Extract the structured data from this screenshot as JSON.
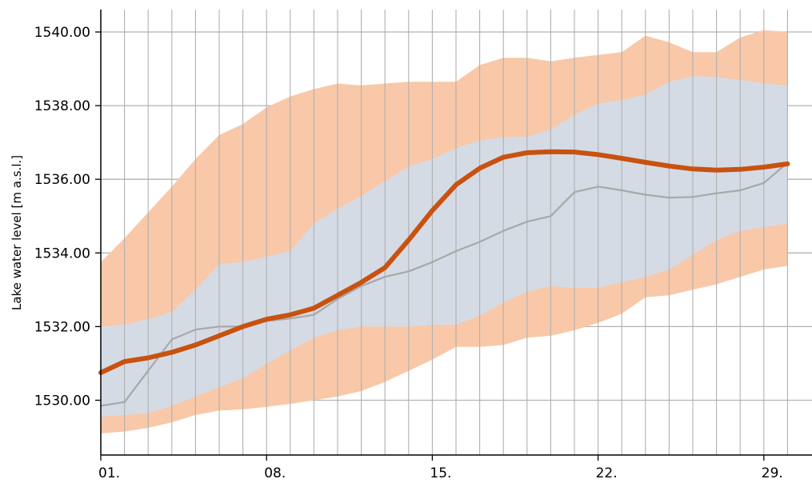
{
  "chart_data": {
    "type": "area",
    "title": "",
    "xlabel": "",
    "ylabel": "Lake water level [m a.s.l.]",
    "xlim": [
      1,
      30
    ],
    "ylim": [
      1528.9,
      1540.6
    ],
    "x_ticks": [
      {
        "value": 1,
        "label": "01."
      },
      {
        "value": 8,
        "label": "08."
      },
      {
        "value": 15,
        "label": "15."
      },
      {
        "value": 22,
        "label": "22."
      },
      {
        "value": 29,
        "label": "29."
      }
    ],
    "y_ticks": [
      {
        "value": 1530,
        "label": "1530.00"
      },
      {
        "value": 1532,
        "label": "1532.00"
      },
      {
        "value": 1534,
        "label": "1534.00"
      },
      {
        "value": 1536,
        "label": "1536.00"
      },
      {
        "value": 1538,
        "label": "1538.00"
      },
      {
        "value": 1540,
        "label": "1540.00"
      }
    ],
    "grid": "vertical lines at every day, horizontal lines at y ticks",
    "x": [
      1,
      2,
      3,
      4,
      5,
      6,
      7,
      8,
      9,
      10,
      11,
      12,
      13,
      14,
      15,
      16,
      17,
      18,
      19,
      20,
      21,
      22,
      23,
      24,
      25,
      26,
      27,
      28,
      29,
      30
    ],
    "bands": [
      {
        "color": "#f8c8a8",
        "lower": [
          1529.1,
          1529.15,
          1529.25,
          1529.4,
          1529.6,
          1529.72,
          1529.75,
          1529.82,
          1529.9,
          1530.0,
          1530.1,
          1530.25,
          1530.5,
          1530.8,
          1531.1,
          1531.45,
          1531.45,
          1531.5,
          1531.7,
          1531.75,
          1531.9,
          1532.1,
          1532.35,
          1532.8,
          1532.85,
          1533.0,
          1533.15,
          1533.35,
          1533.55,
          1533.65
        ],
        "upper": [
          1533.75,
          1534.4,
          1535.1,
          1535.8,
          1536.55,
          1537.2,
          1537.5,
          1537.95,
          1538.25,
          1538.45,
          1538.6,
          1538.55,
          1538.6,
          1538.65,
          1538.65,
          1538.65,
          1539.1,
          1539.3,
          1539.3,
          1539.2,
          1539.3,
          1539.38,
          1539.45,
          1539.9,
          1539.72,
          1539.45,
          1539.45,
          1539.85,
          1540.05,
          1540.0
        ]
      },
      {
        "color": "#d5dbe5",
        "lower": [
          1529.55,
          1529.6,
          1529.65,
          1529.85,
          1530.1,
          1530.35,
          1530.6,
          1531.0,
          1531.35,
          1531.7,
          1531.9,
          1532.0,
          1532.0,
          1532.0,
          1532.05,
          1532.05,
          1532.3,
          1532.65,
          1532.95,
          1533.1,
          1533.05,
          1533.05,
          1533.2,
          1533.35,
          1533.55,
          1533.95,
          1534.35,
          1534.6,
          1534.7,
          1534.8
        ],
        "upper": [
          1532.0,
          1532.05,
          1532.2,
          1532.4,
          1533.0,
          1533.7,
          1533.75,
          1533.9,
          1534.05,
          1534.8,
          1535.2,
          1535.55,
          1535.95,
          1536.35,
          1536.55,
          1536.85,
          1537.05,
          1537.15,
          1537.15,
          1537.35,
          1537.75,
          1538.05,
          1538.15,
          1538.3,
          1538.65,
          1538.8,
          1538.78,
          1538.7,
          1538.6,
          1538.55
        ]
      }
    ],
    "series": [
      {
        "color": "#c8520f",
        "values": [
          1530.75,
          1531.05,
          1531.15,
          1531.3,
          1531.5,
          1531.75,
          1532.0,
          1532.2,
          1532.32,
          1532.5,
          1532.85,
          1533.2,
          1533.6,
          1534.35,
          1535.15,
          1535.85,
          1536.3,
          1536.6,
          1536.72,
          1536.75,
          1536.74,
          1536.67,
          1536.57,
          1536.46,
          1536.36,
          1536.28,
          1536.25,
          1536.27,
          1536.33,
          1536.42
        ]
      },
      {
        "color": "#a8a8a8",
        "values": [
          1529.85,
          1529.95,
          1530.8,
          1531.65,
          1531.92,
          1532.0,
          1532.0,
          1532.15,
          1532.22,
          1532.32,
          1532.75,
          1533.1,
          1533.35,
          1533.5,
          1533.75,
          1534.05,
          1534.3,
          1534.6,
          1534.85,
          1535.0,
          1535.65,
          1535.8,
          1535.7,
          1535.58,
          1535.5,
          1535.52,
          1535.62,
          1535.7,
          1535.9,
          1536.45
        ]
      }
    ]
  }
}
